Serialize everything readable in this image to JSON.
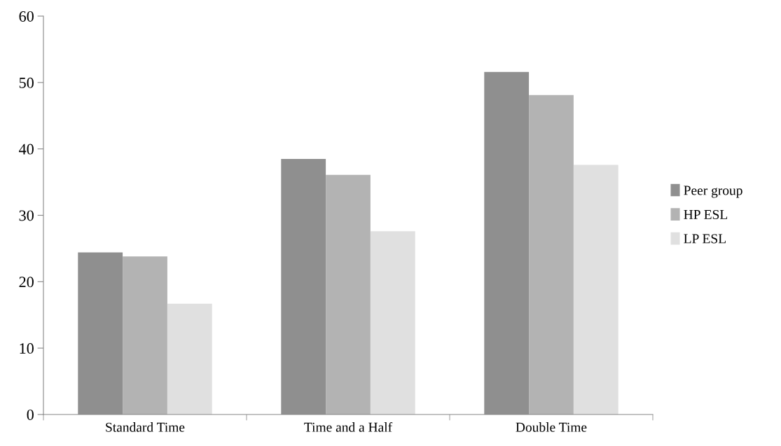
{
  "chart_data": {
    "type": "bar",
    "categories": [
      "Standard Time",
      "Time and a Half",
      "Double Time"
    ],
    "series": [
      {
        "name": "Peer group",
        "color": "#8f8f8f",
        "values": [
          24.4,
          38.5,
          51.6
        ]
      },
      {
        "name": "HP ESL",
        "color": "#b3b3b3",
        "values": [
          23.8,
          36.1,
          48.1
        ]
      },
      {
        "name": "LP ESL",
        "color": "#e0e0e0",
        "values": [
          16.7,
          27.6,
          37.6
        ]
      }
    ],
    "ylim": [
      0,
      60
    ],
    "yticks": [
      0,
      10,
      20,
      30,
      40,
      50,
      60
    ],
    "grid": false,
    "legend": "right"
  }
}
